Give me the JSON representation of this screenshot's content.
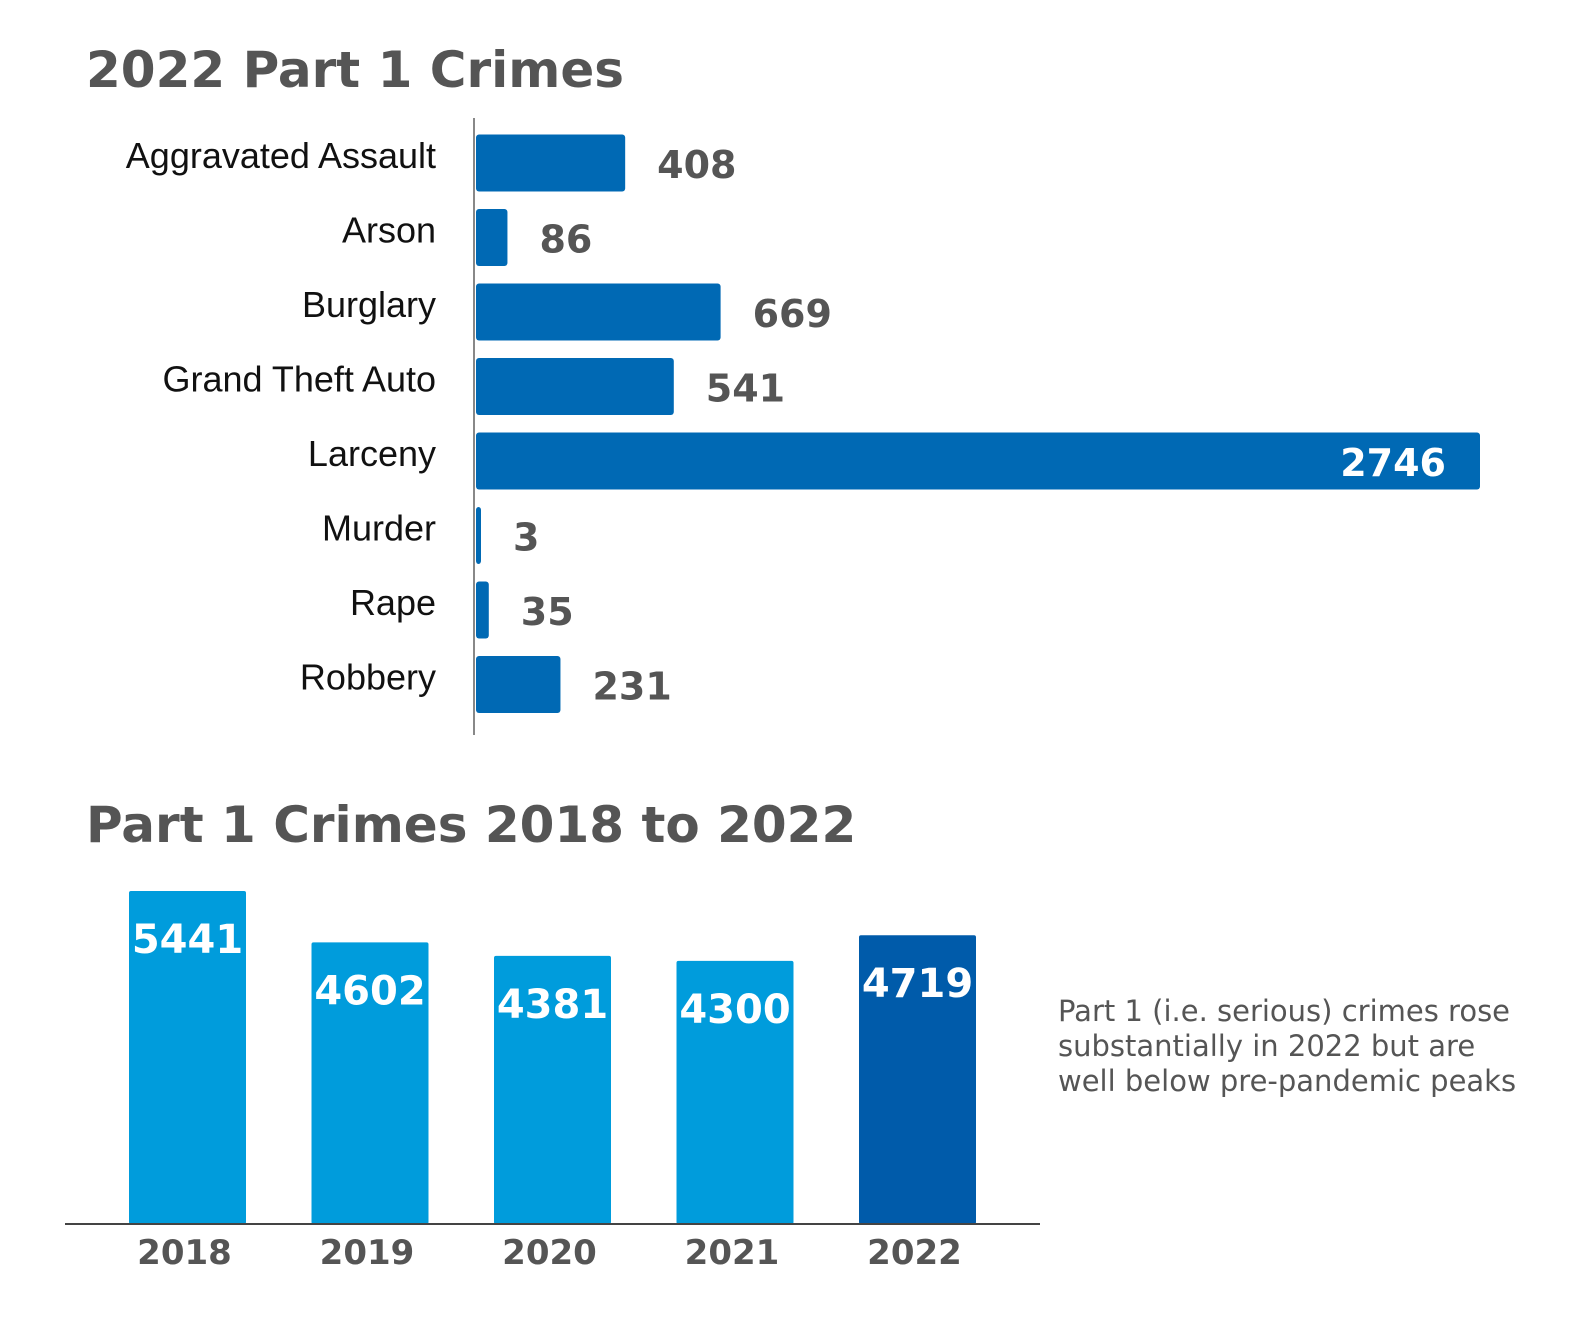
{
  "chart_data": [
    {
      "type": "bar",
      "orientation": "horizontal",
      "title": "2022 Part 1 Crimes",
      "categories": [
        "Aggravated Assault",
        "Arson",
        "Burglary",
        "Grand Theft Auto",
        "Larceny",
        "Murder",
        "Rape",
        "Robbery"
      ],
      "values": [
        408,
        86,
        669,
        541,
        2746,
        3,
        35,
        231
      ],
      "data_labels": [
        "408",
        "86",
        "669",
        "541",
        "2746",
        "3",
        "35",
        "231"
      ],
      "xlim": [
        0,
        2746
      ],
      "grid": false,
      "bar_color": "#0069B4"
    },
    {
      "type": "bar",
      "orientation": "vertical",
      "title": "Part 1 Crimes 2018 to 2022",
      "categories": [
        "2018",
        "2019",
        "2020",
        "2021",
        "2022"
      ],
      "values": [
        5441,
        4602,
        4381,
        4300,
        4719
      ],
      "data_labels": [
        "5441",
        "4602",
        "4381",
        "4300",
        "4719"
      ],
      "ylim": [
        0,
        5441
      ],
      "grid": false,
      "bar_colors": [
        "#009CDC",
        "#009CDC",
        "#009CDC",
        "#009CDC",
        "#005BAA"
      ],
      "annotation": "Part 1 (i.e. serious) crimes rose substantially in 2022 but are well below pre-pandemic peaks"
    }
  ]
}
